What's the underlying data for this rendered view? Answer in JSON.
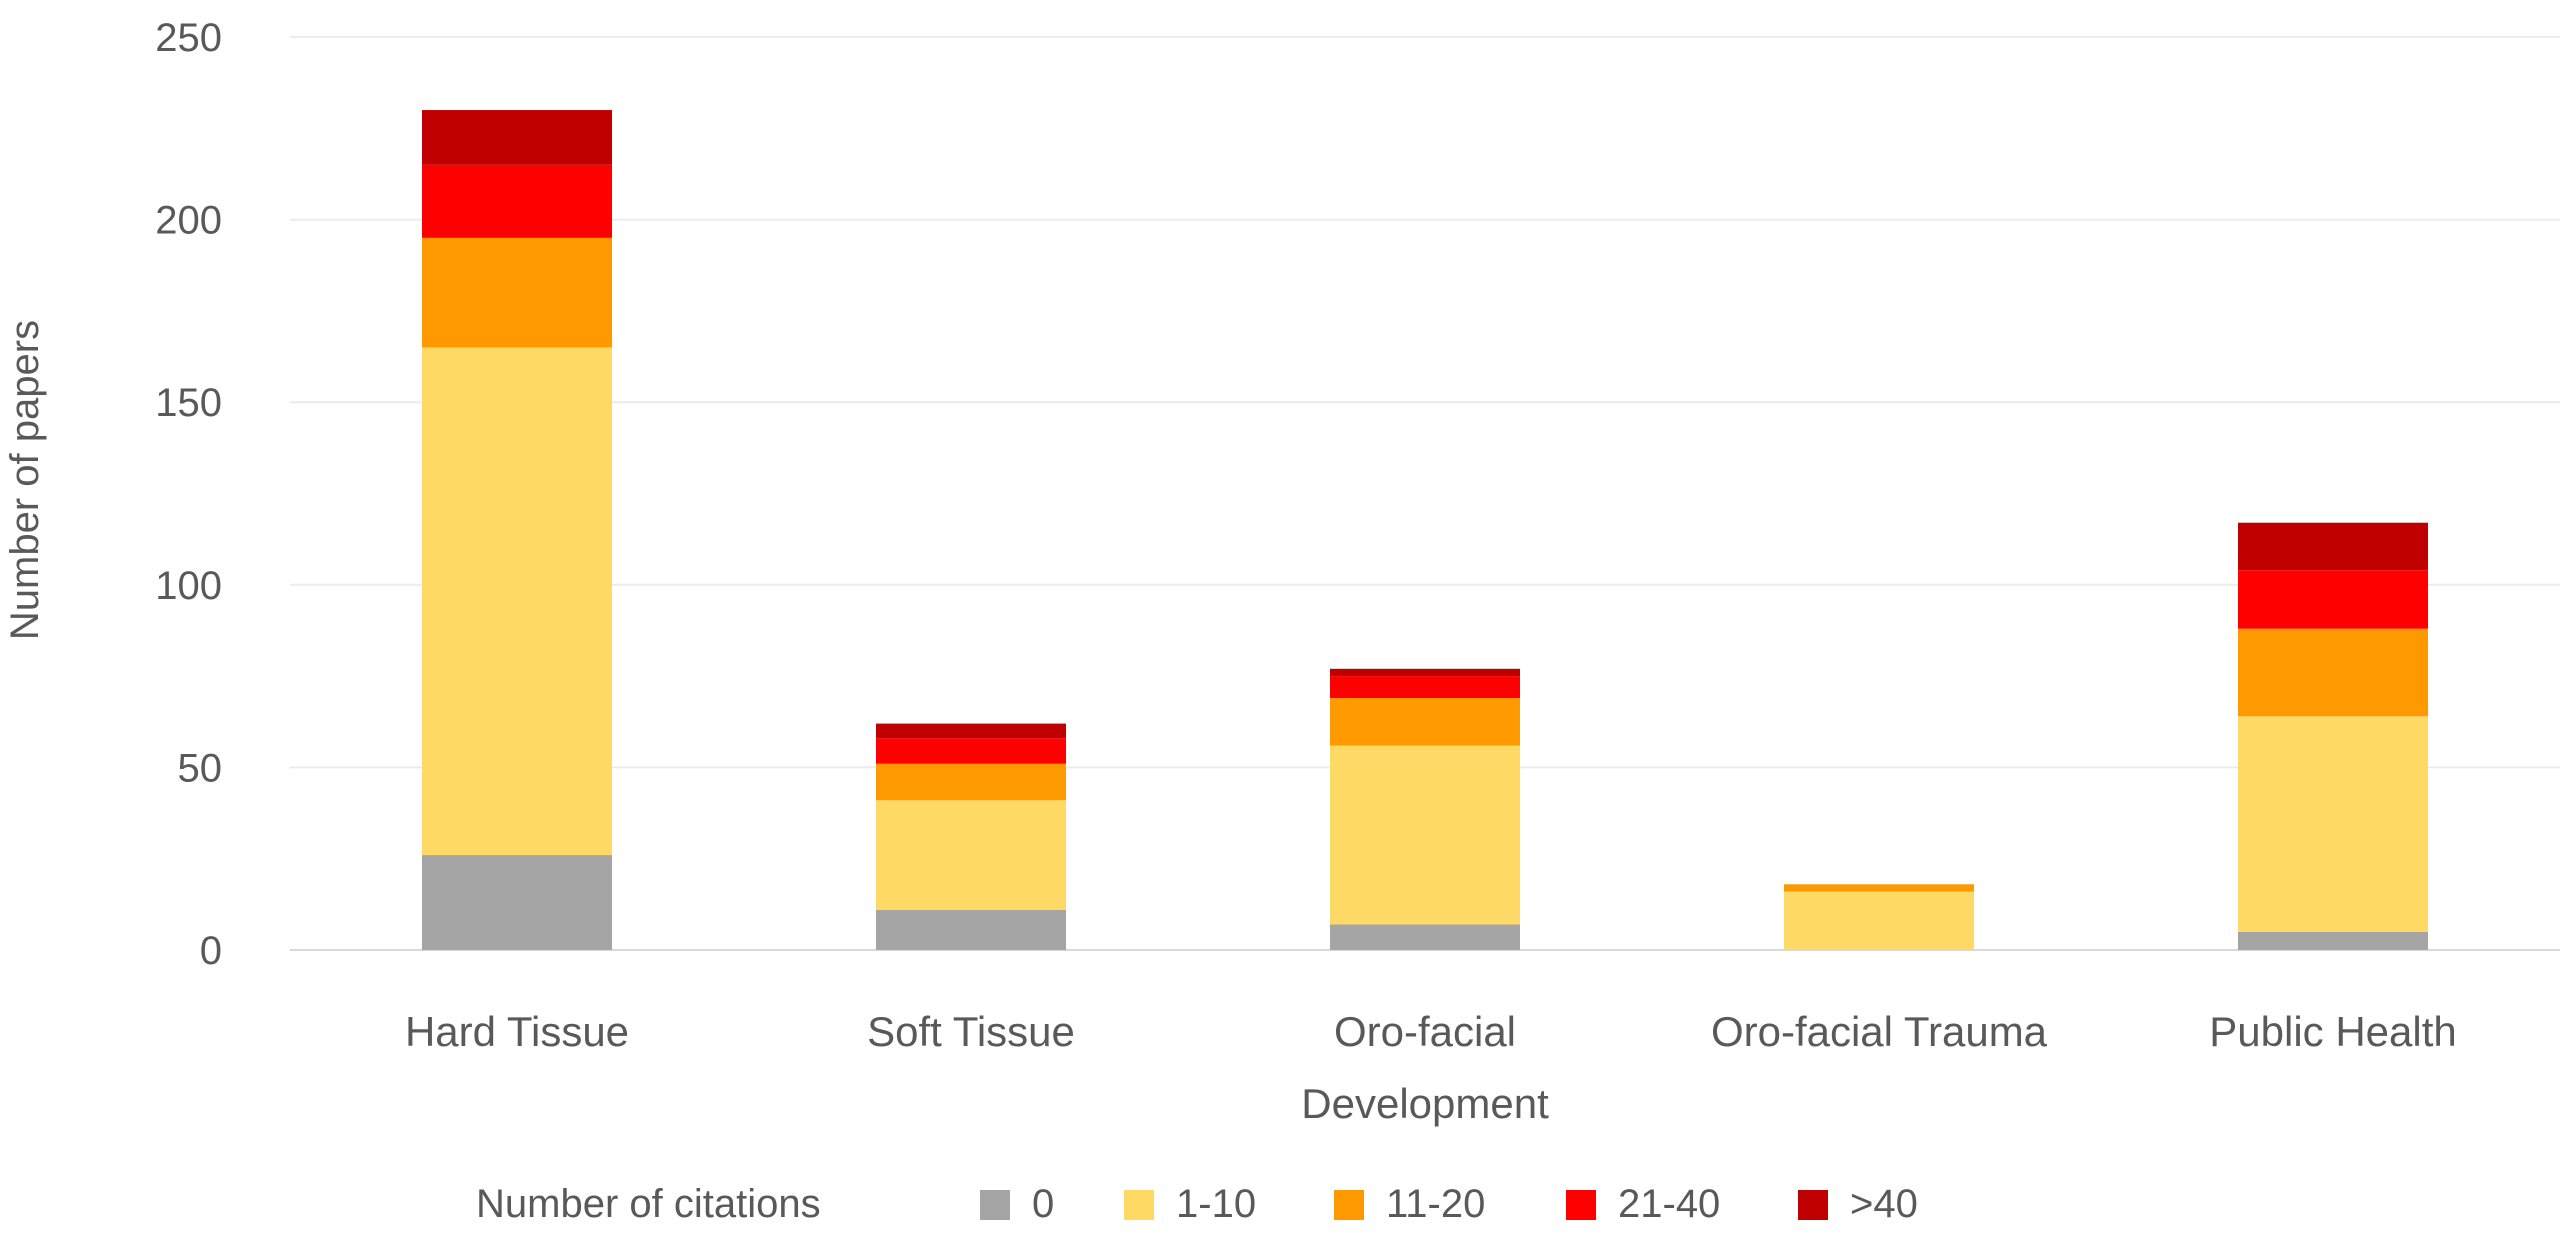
{
  "chart_data": {
    "type": "bar",
    "stacked": true,
    "title": "",
    "xlabel": "",
    "ylabel": "Number of papers",
    "ylim": [
      0,
      250
    ],
    "yticks": [
      0,
      50,
      100,
      150,
      200,
      250
    ],
    "grid": true,
    "categories": [
      [
        "Hard Tissue"
      ],
      [
        "Soft Tissue"
      ],
      [
        "Oro-facial",
        "Development"
      ],
      [
        "Oro-facial Trauma"
      ],
      [
        "Public Health"
      ]
    ],
    "legend_title": "Number of citations",
    "legend_position": "bottom",
    "series": [
      {
        "name": "0",
        "color": "#a5a5a5",
        "values": [
          26,
          11,
          7,
          0,
          5
        ]
      },
      {
        "name": "1-10",
        "color": "#ffd966",
        "values": [
          139,
          30,
          49,
          16,
          59
        ]
      },
      {
        "name": "11-20",
        "color": "#ff9900",
        "values": [
          30,
          10,
          13,
          2,
          24
        ]
      },
      {
        "name": "21-40",
        "color": "#ff0000",
        "values": [
          20,
          7,
          6,
          0,
          16
        ]
      },
      {
        "name": ">40",
        "color": "#c00000",
        "values": [
          15,
          4,
          2,
          0,
          13
        ]
      }
    ]
  }
}
